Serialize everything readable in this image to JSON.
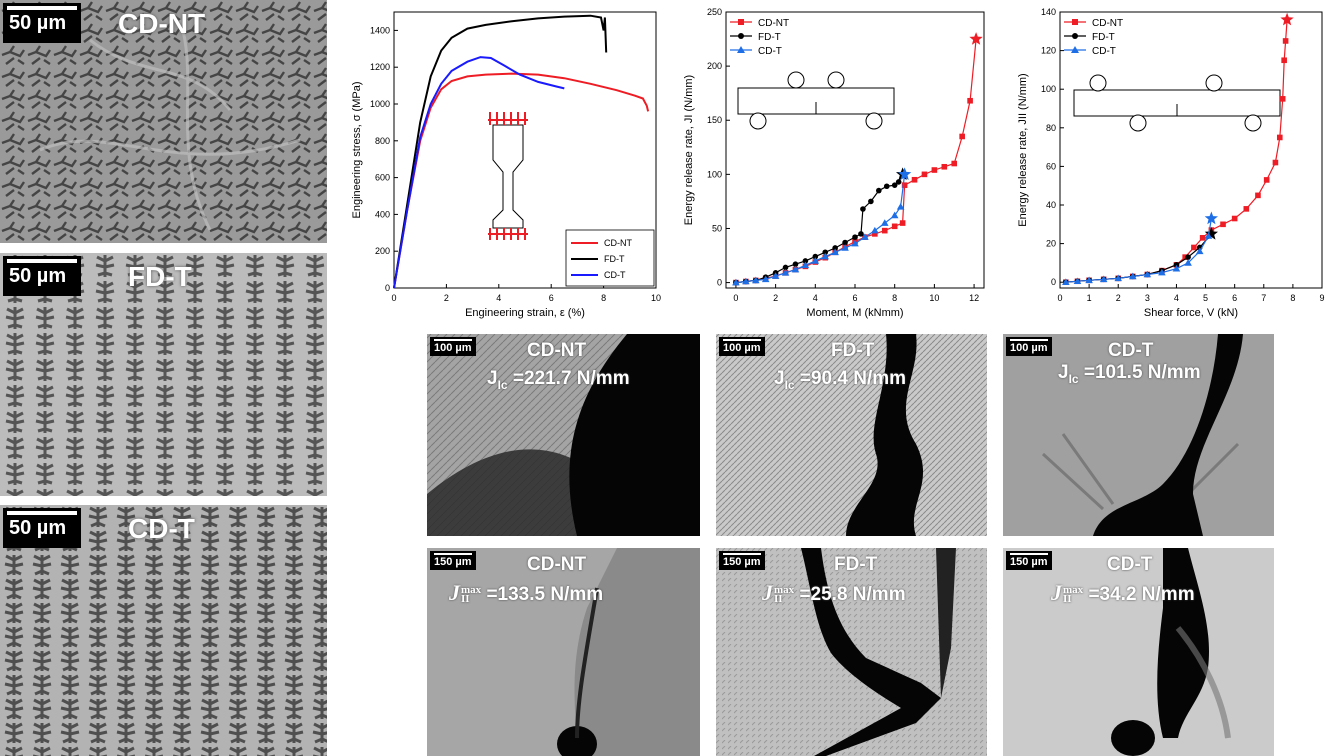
{
  "microstructures": [
    {
      "scale": "50 µm",
      "label": "CD-NT"
    },
    {
      "scale": "50 µm",
      "label": "FD-T"
    },
    {
      "scale": "50 µm",
      "label": "CD-T"
    }
  ],
  "crack_row1": [
    {
      "scale": "100 µm",
      "title": "CD-NT",
      "sym": "J",
      "sub": "Ic",
      "value": "=221.7 N/mm"
    },
    {
      "scale": "100 µm",
      "title": "FD-T",
      "sym": "J",
      "sub": "Ic",
      "value": "=90.4 N/mm"
    },
    {
      "scale": "100 µm",
      "title": "CD-T",
      "sym": "J",
      "sub": "Ic",
      "value": "=101.5 N/mm"
    }
  ],
  "crack_row2": [
    {
      "scale": "150 µm",
      "title": "CD-NT",
      "sym": "J",
      "sub": "II",
      "sup": "max",
      "value": "=133.5 N/mm"
    },
    {
      "scale": "150 µm",
      "title": "FD-T",
      "sym": "J",
      "sub": "II",
      "sup": "max",
      "value": "=25.8 N/mm"
    },
    {
      "scale": "150 µm",
      "title": "CD-T",
      "sym": "J",
      "sub": "II",
      "sup": "max",
      "value": "=34.2 N/mm"
    }
  ],
  "colors": {
    "CD-NT": "#ee1c24",
    "FD-T": "#000000",
    "CD-T": "#1e6ee6",
    "CD-T-tensile": "#1a1aff"
  },
  "chart_data": [
    {
      "type": "line",
      "xlabel": "Engineering strain, ε (%)",
      "ylabel": "Engineering stress, σ (MPa)",
      "xlim": [
        0,
        10
      ],
      "ylim": [
        0,
        1500
      ],
      "xticks": [
        "0",
        "2",
        "4",
        "6",
        "8",
        "10"
      ],
      "yticks": [
        "0",
        "200",
        "400",
        "600",
        "800",
        "1000",
        "1200",
        "1400"
      ],
      "legend": "bottom-right",
      "series": [
        {
          "name": "CD-NT",
          "color": "#ee1c24",
          "x": [
            0,
            0.5,
            1,
            1.4,
            1.8,
            2.2,
            2.8,
            3.5,
            4.5,
            5.5,
            6.5,
            7.5,
            8.5,
            9.2,
            9.5,
            9.65,
            9.7
          ],
          "y": [
            0,
            420,
            800,
            980,
            1080,
            1125,
            1150,
            1160,
            1165,
            1160,
            1140,
            1110,
            1075,
            1045,
            1030,
            990,
            960
          ]
        },
        {
          "name": "FD-T",
          "color": "#000000",
          "x": [
            0,
            0.5,
            1,
            1.4,
            1.8,
            2.2,
            2.8,
            3.5,
            4.5,
            5.5,
            6.5,
            7.5,
            7.9,
            8.0,
            8.05,
            8.1
          ],
          "y": [
            0,
            450,
            900,
            1150,
            1290,
            1360,
            1410,
            1430,
            1450,
            1465,
            1475,
            1480,
            1470,
            1400,
            1470,
            1280
          ]
        },
        {
          "name": "CD-T",
          "color": "#1a1aff",
          "x": [
            0,
            0.5,
            1,
            1.4,
            1.8,
            2.2,
            2.8,
            3.3,
            3.7,
            4.2,
            4.8,
            5.5,
            6.2,
            6.5
          ],
          "y": [
            0,
            420,
            820,
            1000,
            1110,
            1180,
            1230,
            1255,
            1250,
            1210,
            1160,
            1120,
            1095,
            1085
          ]
        }
      ]
    },
    {
      "type": "line",
      "xlabel": "Moment, M (kNmm)",
      "ylabel": "Energy release rate, JI (N/mm)",
      "xlim": [
        -0.5,
        12.5
      ],
      "ylim": [
        -5,
        250
      ],
      "xticks": [
        "0",
        "2",
        "4",
        "6",
        "8",
        "10",
        "12"
      ],
      "yticks": [
        "0",
        "50",
        "100",
        "150",
        "200",
        "250"
      ],
      "legend": "top-left",
      "series": [
        {
          "name": "CD-NT",
          "color": "#ee1c24",
          "x": [
            0,
            0.5,
            1,
            1.5,
            2,
            2.5,
            3,
            3.5,
            4,
            4.5,
            5,
            5.5,
            6,
            6.5,
            7,
            7.5,
            8,
            8.4,
            8.5,
            9,
            9.5,
            10,
            10.5,
            11,
            11.4,
            11.8,
            12.1
          ],
          "y": [
            0,
            1,
            2,
            4,
            6,
            9,
            12,
            15,
            19,
            23,
            28,
            33,
            38,
            42,
            45,
            48,
            52,
            55,
            90,
            95,
            100,
            104,
            107,
            110,
            135,
            168,
            225
          ]
        },
        {
          "name": "FD-T",
          "color": "#000000",
          "x": [
            0,
            0.5,
            1,
            1.5,
            2,
            2.5,
            3,
            3.5,
            4,
            4.5,
            5,
            5.5,
            6,
            6.3,
            6.4,
            6.8,
            7.2,
            7.6,
            8,
            8.2,
            8.4
          ],
          "y": [
            0,
            1,
            2,
            5,
            9,
            14,
            17,
            20,
            24,
            28,
            32,
            37,
            42,
            45,
            68,
            75,
            85,
            89,
            90,
            93,
            100
          ]
        },
        {
          "name": "CD-T",
          "color": "#1e6ee6",
          "x": [
            0,
            0.5,
            1,
            1.5,
            2,
            2.5,
            3,
            3.5,
            4,
            4.5,
            5,
            5.5,
            6,
            6.5,
            7,
            7.5,
            8,
            8.3,
            8.5
          ],
          "y": [
            0,
            1,
            2,
            3,
            6,
            9,
            12,
            16,
            20,
            24,
            28,
            32,
            36,
            42,
            48,
            55,
            62,
            70,
            100
          ]
        }
      ]
    },
    {
      "type": "line",
      "xlabel": "Shear force, V (kN)",
      "ylabel": "Energy release rate, JII (N/mm)",
      "xlim": [
        0,
        9
      ],
      "ylim": [
        -3,
        140
      ],
      "xticks": [
        "0",
        "1",
        "2",
        "3",
        "4",
        "5",
        "6",
        "7",
        "8",
        "9"
      ],
      "yticks": [
        "0",
        "20",
        "40",
        "60",
        "80",
        "100",
        "120",
        "140"
      ],
      "legend": "top-left",
      "series": [
        {
          "name": "CD-NT",
          "color": "#ee1c24",
          "x": [
            0.2,
            0.6,
            1,
            1.5,
            2,
            2.5,
            3,
            3.5,
            4,
            4.3,
            4.6,
            4.9,
            5.2,
            5.6,
            6,
            6.4,
            6.8,
            7.1,
            7.4,
            7.55,
            7.65,
            7.7,
            7.75,
            7.8
          ],
          "y": [
            0,
            0.5,
            1,
            1.5,
            2,
            3,
            4,
            6,
            9,
            13,
            18,
            23,
            27,
            30,
            33,
            38,
            45,
            53,
            62,
            75,
            95,
            115,
            125,
            136
          ]
        },
        {
          "name": "FD-T",
          "color": "#000000",
          "x": [
            0.2,
            0.6,
            1,
            1.5,
            2,
            2.5,
            3,
            3.5,
            4,
            4.4,
            4.8,
            5.2
          ],
          "y": [
            0,
            0.5,
            1,
            1.5,
            2,
            3,
            4,
            6,
            9,
            13,
            18,
            25
          ]
        },
        {
          "name": "CD-T",
          "color": "#1e6ee6",
          "x": [
            0.2,
            0.6,
            1,
            1.5,
            2,
            2.5,
            3,
            3.5,
            4,
            4.4,
            4.8,
            5.1,
            5.2
          ],
          "y": [
            0,
            0.5,
            1,
            1.5,
            2,
            3,
            4,
            5,
            7,
            10,
            16,
            24,
            33
          ]
        }
      ]
    }
  ]
}
